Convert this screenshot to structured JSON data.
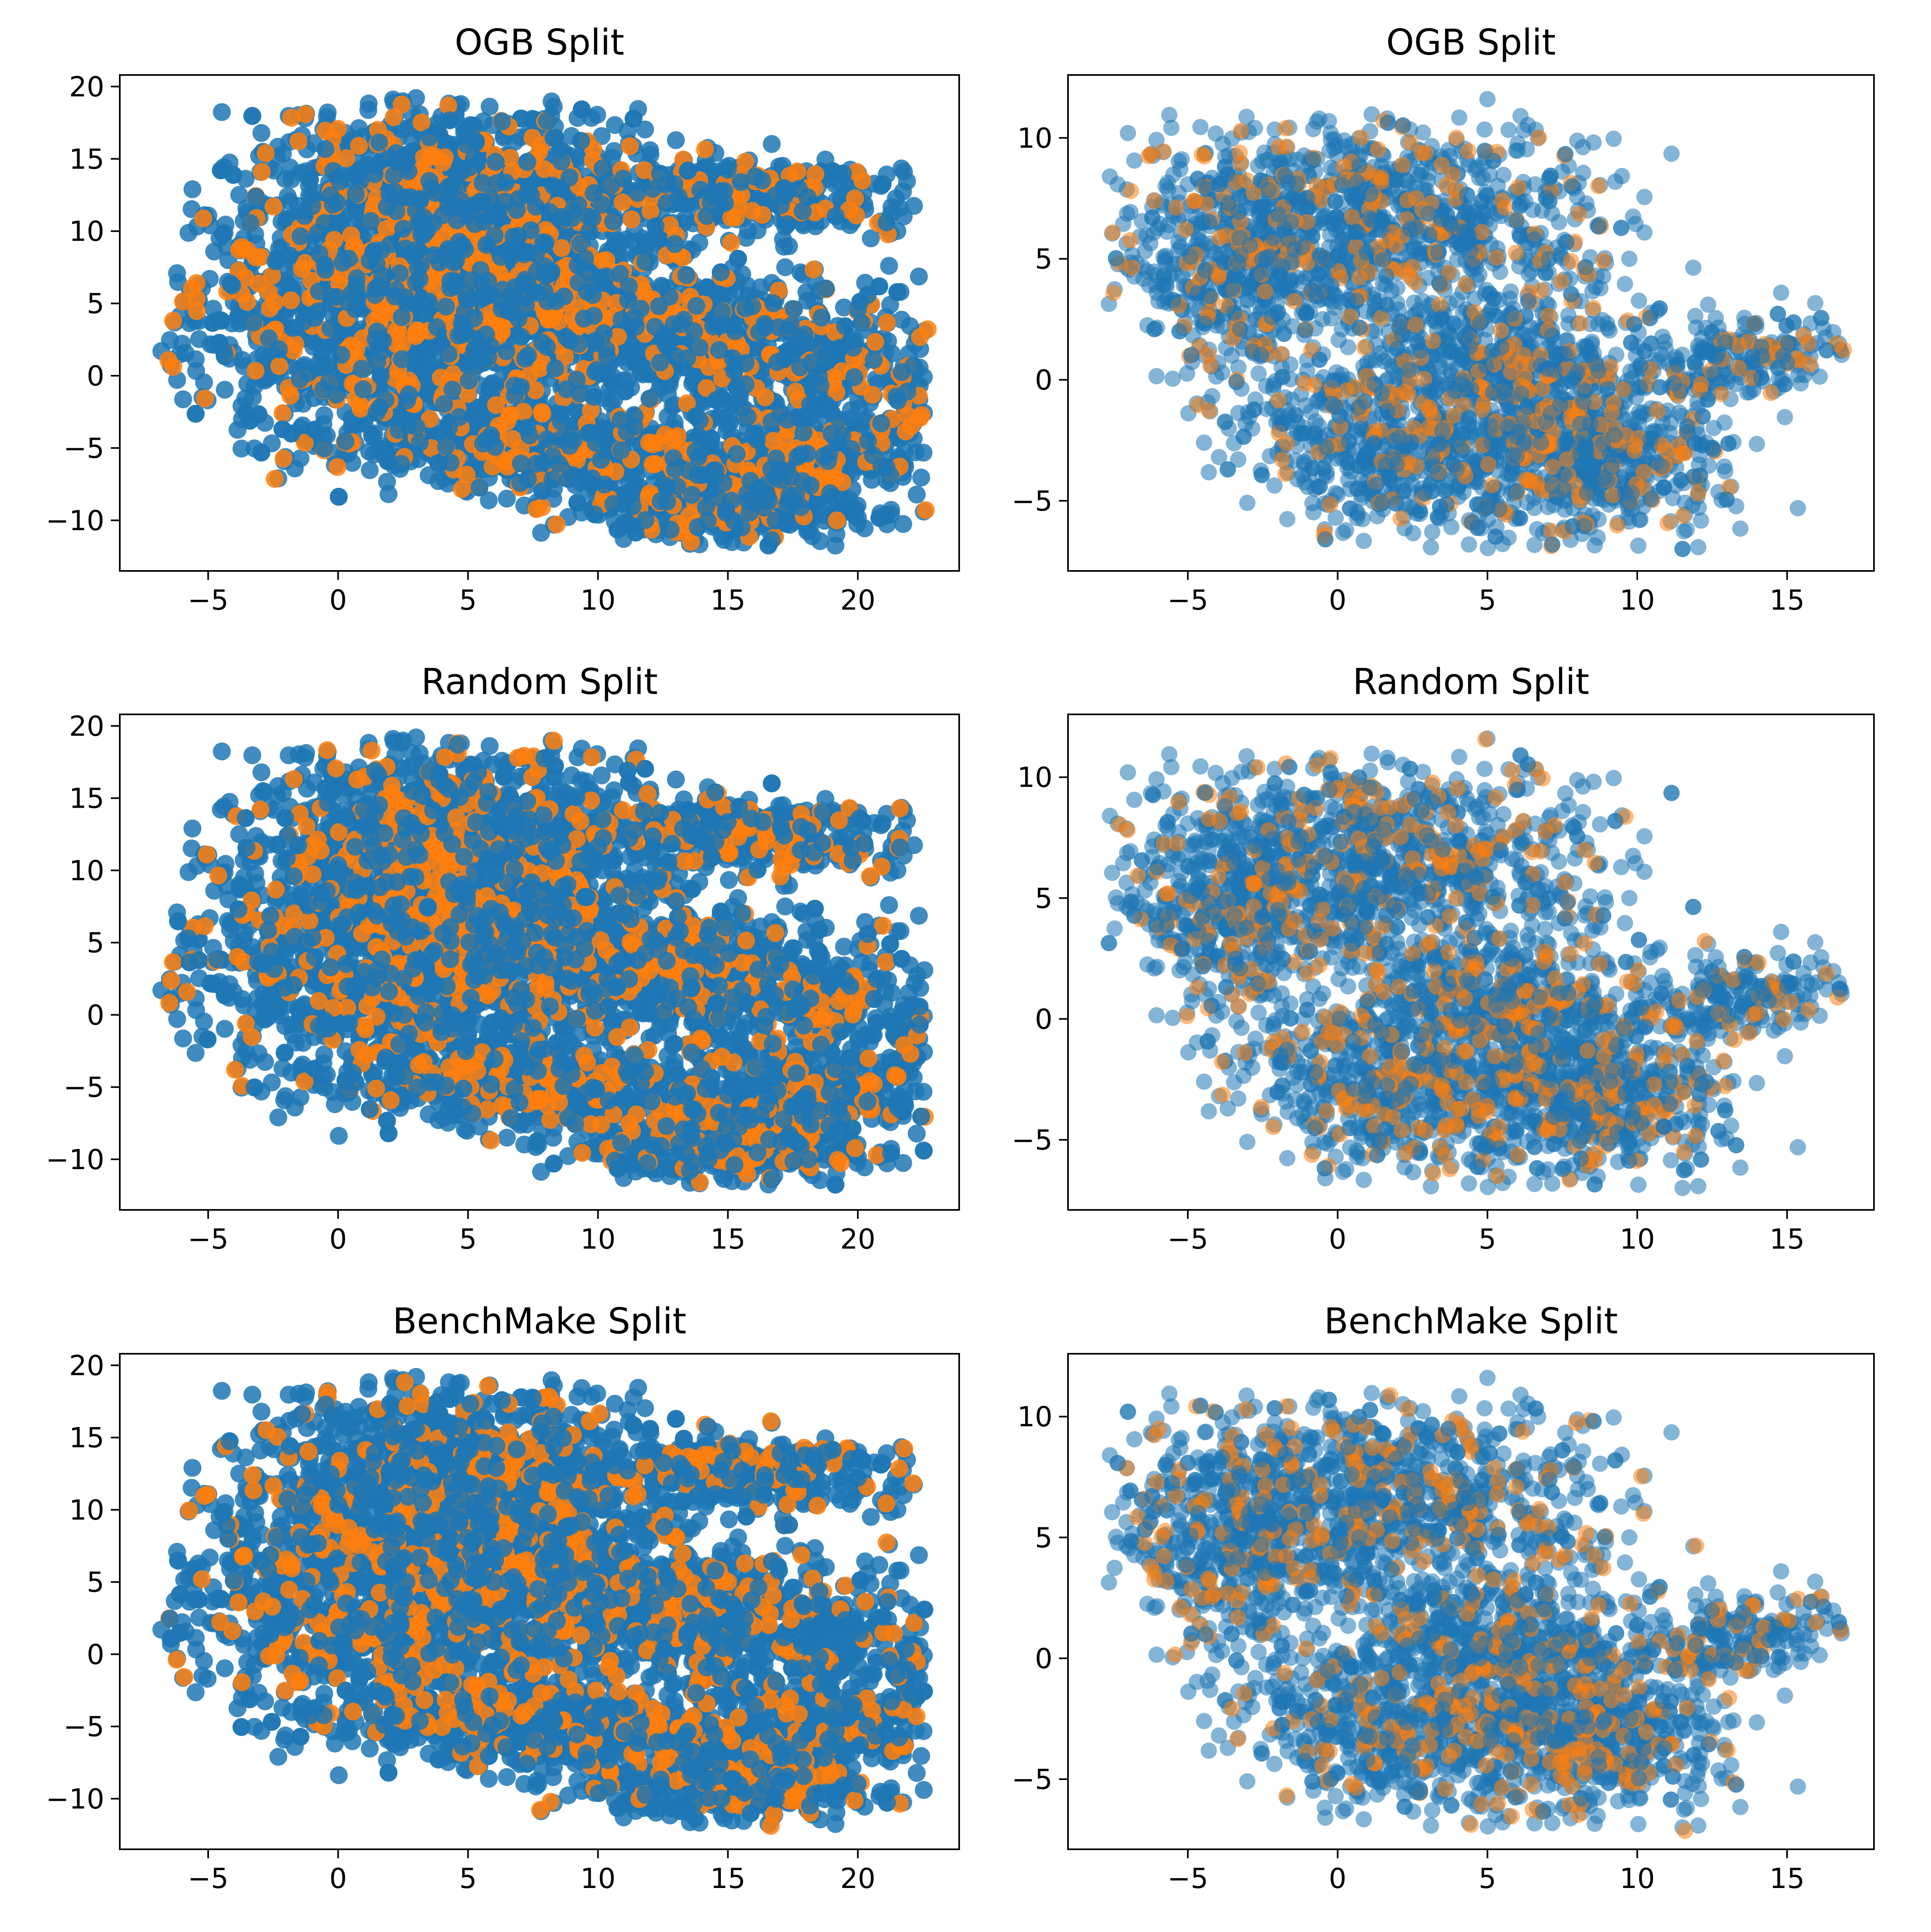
{
  "colors": {
    "blue": "#1f77b4",
    "orange": "#ff7f0e"
  },
  "chart_data": [
    {
      "type": "scatter",
      "title": "OGB Split",
      "panel": "A",
      "variant": 0,
      "xlim": [
        -8.4,
        23.9
      ],
      "ylim": [
        -13.5,
        20.8
      ],
      "xticks": [
        -5,
        0,
        5,
        10,
        15,
        20
      ],
      "yticks": [
        -10,
        -5,
        0,
        5,
        10,
        15,
        20
      ],
      "tick_labels_x": [
        "−5",
        "0",
        "5",
        "10",
        "15",
        "20"
      ],
      "tick_labels_y": [
        "−10",
        "−5",
        "0",
        "5",
        "10",
        "15",
        "20"
      ],
      "grid": false,
      "series_colors": [
        "#1f77b4",
        "#ff7f0e"
      ]
    },
    {
      "type": "scatter",
      "title": "OGB Split",
      "panel": "B",
      "variant": 0,
      "xlim": [
        -9.0,
        17.9
      ],
      "ylim": [
        -7.9,
        12.6
      ],
      "xticks": [
        -5,
        0,
        5,
        10,
        15
      ],
      "yticks": [
        -5,
        0,
        5,
        10
      ],
      "tick_labels_x": [
        "−5",
        "0",
        "5",
        "10",
        "15"
      ],
      "tick_labels_y": [
        "−5",
        "0",
        "5",
        "10"
      ],
      "grid": false,
      "series_colors": [
        "#1f77b4",
        "#ff7f0e"
      ]
    },
    {
      "type": "scatter",
      "title": "Random Split",
      "panel": "A",
      "variant": 1,
      "xlim": [
        -8.4,
        23.9
      ],
      "ylim": [
        -13.5,
        20.8
      ],
      "xticks": [
        -5,
        0,
        5,
        10,
        15,
        20
      ],
      "yticks": [
        -10,
        -5,
        0,
        5,
        10,
        15,
        20
      ],
      "tick_labels_x": [
        "−5",
        "0",
        "5",
        "10",
        "15",
        "20"
      ],
      "tick_labels_y": [
        "−10",
        "−5",
        "0",
        "5",
        "10",
        "15",
        "20"
      ],
      "grid": false,
      "series_colors": [
        "#1f77b4",
        "#ff7f0e"
      ]
    },
    {
      "type": "scatter",
      "title": "Random Split",
      "panel": "B",
      "variant": 1,
      "xlim": [
        -9.0,
        17.9
      ],
      "ylim": [
        -7.9,
        12.6
      ],
      "xticks": [
        -5,
        0,
        5,
        10,
        15
      ],
      "yticks": [
        -5,
        0,
        5,
        10
      ],
      "tick_labels_x": [
        "−5",
        "0",
        "5",
        "10",
        "15"
      ],
      "tick_labels_y": [
        "−5",
        "0",
        "5",
        "10"
      ],
      "grid": false,
      "series_colors": [
        "#1f77b4",
        "#ff7f0e"
      ]
    },
    {
      "type": "scatter",
      "title": "BenchMake Split",
      "panel": "A",
      "variant": 2,
      "xlim": [
        -8.4,
        23.9
      ],
      "ylim": [
        -13.5,
        20.8
      ],
      "xticks": [
        -5,
        0,
        5,
        10,
        15,
        20
      ],
      "yticks": [
        -10,
        -5,
        0,
        5,
        10,
        15,
        20
      ],
      "tick_labels_x": [
        "−5",
        "0",
        "5",
        "10",
        "15",
        "20"
      ],
      "tick_labels_y": [
        "−10",
        "−5",
        "0",
        "5",
        "10",
        "15",
        "20"
      ],
      "grid": false,
      "series_colors": [
        "#1f77b4",
        "#ff7f0e"
      ]
    },
    {
      "type": "scatter",
      "title": "BenchMake Split",
      "panel": "B",
      "variant": 2,
      "xlim": [
        -9.0,
        17.9
      ],
      "ylim": [
        -7.9,
        12.6
      ],
      "xticks": [
        -5,
        0,
        5,
        10,
        15
      ],
      "yticks": [
        -5,
        0,
        5,
        10
      ],
      "tick_labels_x": [
        "−5",
        "0",
        "5",
        "10",
        "15"
      ],
      "tick_labels_y": [
        "−5",
        "0",
        "5",
        "10"
      ],
      "grid": false,
      "series_colors": [
        "#1f77b4",
        "#ff7f0e"
      ]
    }
  ]
}
